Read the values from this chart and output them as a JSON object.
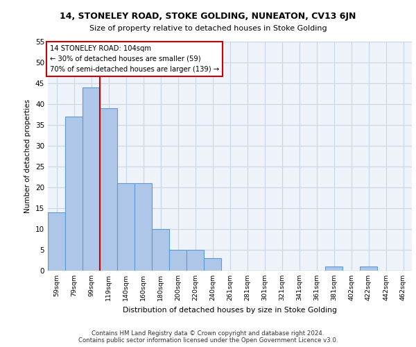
{
  "title1": "14, STONELEY ROAD, STOKE GOLDING, NUNEATON, CV13 6JN",
  "title2": "Size of property relative to detached houses in Stoke Golding",
  "xlabel": "Distribution of detached houses by size in Stoke Golding",
  "ylabel": "Number of detached properties",
  "footnote1": "Contains HM Land Registry data © Crown copyright and database right 2024.",
  "footnote2": "Contains public sector information licensed under the Open Government Licence v3.0.",
  "categories": [
    "59sqm",
    "79sqm",
    "99sqm",
    "119sqm",
    "140sqm",
    "160sqm",
    "180sqm",
    "200sqm",
    "220sqm",
    "240sqm",
    "261sqm",
    "281sqm",
    "301sqm",
    "321sqm",
    "341sqm",
    "361sqm",
    "381sqm",
    "402sqm",
    "422sqm",
    "442sqm",
    "462sqm"
  ],
  "values": [
    14,
    37,
    44,
    39,
    21,
    21,
    10,
    5,
    5,
    3,
    0,
    0,
    0,
    0,
    0,
    0,
    1,
    0,
    1,
    0,
    0
  ],
  "bar_color": "#aec6e8",
  "bar_edge_color": "#5b9bd5",
  "grid_color": "#c8d4e8",
  "background_color": "#eef2f9",
  "annotation_line1": "14 STONELEY ROAD: 104sqm",
  "annotation_line2": "← 30% of detached houses are smaller (59)",
  "annotation_line3": "70% of semi-detached houses are larger (139) →",
  "annotation_box_color": "#ffffff",
  "annotation_box_edge_color": "#cc0000",
  "vline_x_idx": 2,
  "vline_color": "#cc0000",
  "ylim": [
    0,
    55
  ],
  "yticks": [
    0,
    5,
    10,
    15,
    20,
    25,
    30,
    35,
    40,
    45,
    50,
    55
  ]
}
